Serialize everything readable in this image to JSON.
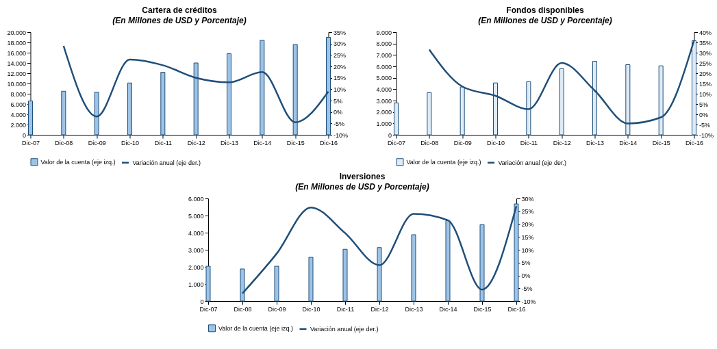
{
  "chart_data": [
    {
      "type": "bar",
      "title": "Cartera de créditos",
      "subtitle": "(En Millones de USD y Porcentaje)",
      "legend": "bottom",
      "categories": [
        "Dic-07",
        "Dic-08",
        "Dic-09",
        "Dic-10",
        "Dic-11",
        "Dic-12",
        "Dic-13",
        "Dic-14",
        "Dic-15",
        "Dic-16"
      ],
      "series": [
        {
          "name": "Valor de la cuenta (eje izq.)",
          "color": "#9dc3e6",
          "values": [
            6600,
            8500,
            8300,
            10100,
            12200,
            14000,
            15800,
            18400,
            17600,
            19000
          ]
        },
        {
          "name": "Variación anual (eje der.)",
          "type": "line",
          "axis": "y2",
          "color": "#1f4e79",
          "values": [
            null,
            29,
            -2,
            23,
            20.5,
            15,
            13,
            17.5,
            -4.5,
            9
          ]
        }
      ],
      "ylim": [
        0,
        20000
      ],
      "yticks": [
        {
          "value": 0,
          "label": "0"
        },
        {
          "value": 2000,
          "label": "2.000"
        },
        {
          "value": 4000,
          "label": "4.000"
        },
        {
          "value": 6000,
          "label": "6.000"
        },
        {
          "value": 8000,
          "label": "8.000"
        },
        {
          "value": 10000,
          "label": "10.000"
        },
        {
          "value": 12000,
          "label": "12.000"
        },
        {
          "value": 14000,
          "label": "14.000"
        },
        {
          "value": 16000,
          "label": "16.000"
        },
        {
          "value": 18000,
          "label": "18.000"
        },
        {
          "value": 20000,
          "label": "20.000"
        }
      ],
      "y2lim": [
        -10,
        35
      ],
      "y2ticks": [
        {
          "value": -10,
          "label": "-10%"
        },
        {
          "value": -5,
          "label": "-5%"
        },
        {
          "value": 0,
          "label": "0%"
        },
        {
          "value": 5,
          "label": "5%"
        },
        {
          "value": 10,
          "label": "10%"
        },
        {
          "value": 15,
          "label": "15%"
        },
        {
          "value": 20,
          "label": "20%"
        },
        {
          "value": 25,
          "label": "25%"
        },
        {
          "value": 30,
          "label": "30%"
        },
        {
          "value": 35,
          "label": "35%"
        }
      ]
    },
    {
      "type": "bar",
      "title": "Fondos disponibles",
      "subtitle": "(En Millones de USD y Porcentaje)",
      "legend": "bottom",
      "categories": [
        "Dic-07",
        "Dic-08",
        "Dic-09",
        "Dic-10",
        "Dic-11",
        "Dic-12",
        "Dic-13",
        "Dic-14",
        "Dic-15",
        "Dic-16"
      ],
      "series": [
        {
          "name": "Valor de la cuenta (eje izq.)",
          "color": "#deebf7",
          "values": [
            2800,
            3700,
            4200,
            4550,
            4650,
            5800,
            6450,
            6150,
            6050,
            8250
          ]
        },
        {
          "name": "Variación anual (eje der.)",
          "type": "line",
          "axis": "y2",
          "color": "#1f4e79",
          "values": [
            null,
            31.5,
            13.5,
            9,
            2.5,
            25,
            11.5,
            -4.5,
            -1.5,
            36
          ]
        }
      ],
      "ylim": [
        0,
        9000
      ],
      "yticks": [
        {
          "value": 0,
          "label": "0"
        },
        {
          "value": 1000,
          "label": "1.000"
        },
        {
          "value": 2000,
          "label": "2.000"
        },
        {
          "value": 3000,
          "label": "3.000"
        },
        {
          "value": 4000,
          "label": "4.000"
        },
        {
          "value": 5000,
          "label": "5.000"
        },
        {
          "value": 6000,
          "label": "6.000"
        },
        {
          "value": 7000,
          "label": "7.000"
        },
        {
          "value": 8000,
          "label": "8.000"
        },
        {
          "value": 9000,
          "label": "9.000"
        }
      ],
      "y2lim": [
        -10,
        40
      ],
      "y2ticks": [
        {
          "value": -10,
          "label": "-10%"
        },
        {
          "value": -5,
          "label": "-5%"
        },
        {
          "value": 0,
          "label": "0%"
        },
        {
          "value": 5,
          "label": "5%"
        },
        {
          "value": 10,
          "label": "10%"
        },
        {
          "value": 15,
          "label": "15%"
        },
        {
          "value": 20,
          "label": "20%"
        },
        {
          "value": 25,
          "label": "25%"
        },
        {
          "value": 30,
          "label": "30%"
        },
        {
          "value": 35,
          "label": "35%"
        },
        {
          "value": 40,
          "label": "40%"
        }
      ]
    },
    {
      "type": "bar",
      "title": "Inversiones",
      "subtitle": "(En Millones de USD y Porcentaje)",
      "legend": "bottom",
      "categories": [
        "Dic-07",
        "Dic-08",
        "Dic-09",
        "Dic-10",
        "Dic-11",
        "Dic-12",
        "Dic-13",
        "Dic-14",
        "Dic-15",
        "Dic-16"
      ],
      "series": [
        {
          "name": "Valor de la cuenta (eje izq.)",
          "color": "#9dc3e6",
          "values": [
            2040,
            1880,
            2040,
            2560,
            3030,
            3130,
            3880,
            4700,
            4470,
            5680
          ]
        },
        {
          "name": "Variación anual (eje der.)",
          "type": "line",
          "axis": "y2",
          "color": "#1f4e79",
          "values": [
            null,
            -7,
            8.5,
            26.5,
            16.5,
            4,
            24,
            21.5,
            -5.5,
            27
          ]
        }
      ],
      "ylim": [
        0,
        6000
      ],
      "yticks": [
        {
          "value": 0,
          "label": "0"
        },
        {
          "value": 1000,
          "label": "1.000"
        },
        {
          "value": 2000,
          "label": "2.000"
        },
        {
          "value": 3000,
          "label": "3.000"
        },
        {
          "value": 4000,
          "label": "4.000"
        },
        {
          "value": 5000,
          "label": "5.000"
        },
        {
          "value": 6000,
          "label": "6.000"
        }
      ],
      "y2lim": [
        -10,
        30
      ],
      "y2ticks": [
        {
          "value": -10,
          "label": "-10%"
        },
        {
          "value": -5,
          "label": "-5%"
        },
        {
          "value": 0,
          "label": "0%"
        },
        {
          "value": 5,
          "label": "5%"
        },
        {
          "value": 10,
          "label": "10%"
        },
        {
          "value": 15,
          "label": "15%"
        },
        {
          "value": 20,
          "label": "20%"
        },
        {
          "value": 25,
          "label": "25%"
        },
        {
          "value": 30,
          "label": "30%"
        }
      ]
    }
  ]
}
